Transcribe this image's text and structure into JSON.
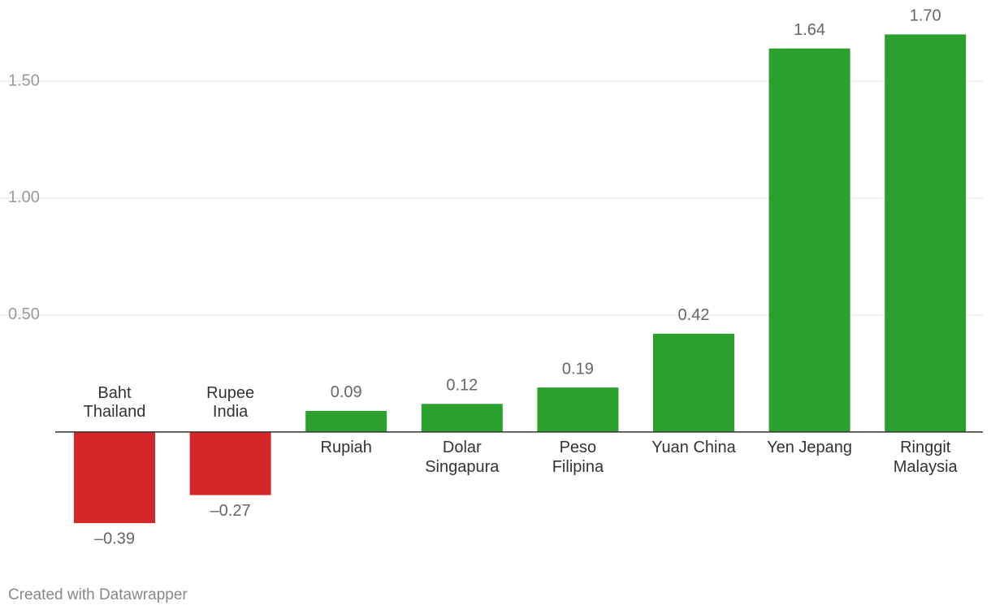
{
  "chart_data": {
    "type": "bar",
    "categories": [
      [
        "Baht",
        "Thailand"
      ],
      [
        "Rupee",
        "India"
      ],
      [
        "Rupiah"
      ],
      [
        "Dolar",
        "Singapura"
      ],
      [
        "Peso",
        "Filipina"
      ],
      [
        "Yuan China"
      ],
      [
        "Yen Jepang"
      ],
      [
        "Ringgit",
        "Malaysia"
      ]
    ],
    "values": [
      -0.39,
      -0.27,
      0.09,
      0.12,
      0.19,
      0.42,
      1.64,
      1.7
    ],
    "value_labels": [
      "–0.39",
      "–0.27",
      "0.09",
      "0.12",
      "0.19",
      "0.42",
      "1.64",
      "1.70"
    ],
    "colors": [
      "#d62728",
      "#d62728",
      "#2ca02c",
      "#2ca02c",
      "#2ca02c",
      "#2ca02c",
      "#2ca02c",
      "#2ca02c"
    ],
    "ylim": [
      -0.4,
      1.75
    ],
    "yticks": [
      {
        "value": 0.5,
        "label": "0.50"
      },
      {
        "value": 1,
        "label": "1.00"
      },
      {
        "value": 1.5,
        "label": "1.50"
      }
    ],
    "grid": true
  },
  "footer": "Created with Datawrapper"
}
